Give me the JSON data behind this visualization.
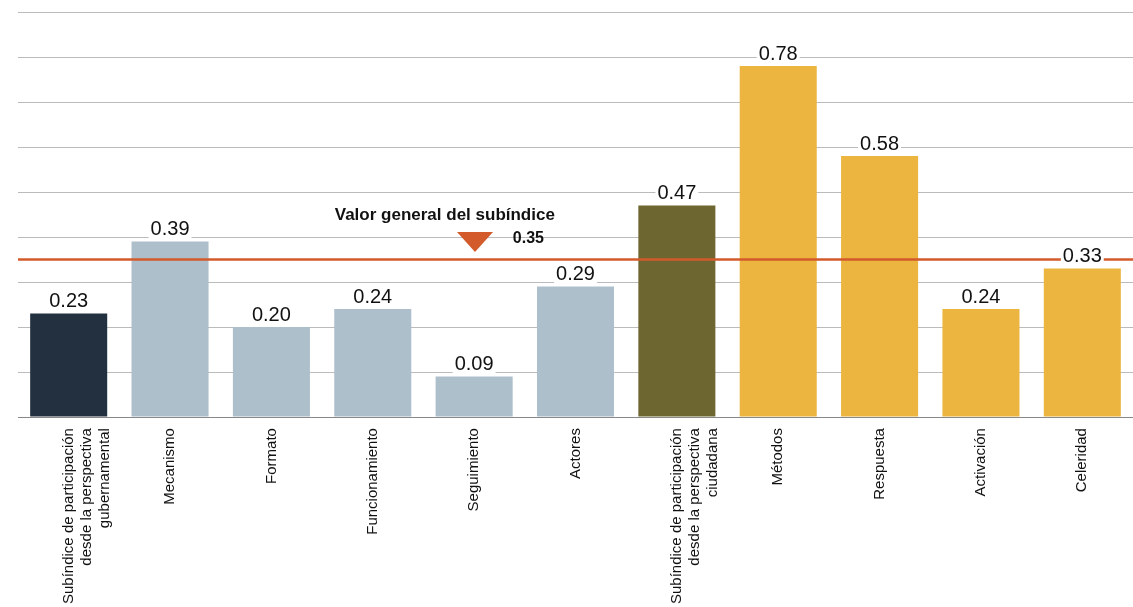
{
  "chart_data": {
    "type": "bar",
    "categories": [
      "Subíndice de participación desde la perspectiva gubernamental",
      "Mecanismo",
      "Formato",
      "Funcionamiento",
      "Seguimiento",
      "Actores",
      "Subíndice de participación desde la perspectiva ciudadana",
      "Métodos",
      "Respuesta",
      "Activación",
      "Celeridad"
    ],
    "values": [
      0.23,
      0.39,
      0.2,
      0.24,
      0.09,
      0.29,
      0.47,
      0.78,
      0.58,
      0.24,
      0.33
    ],
    "colors": [
      "#22303f",
      "#adbfcb",
      "#adbfcb",
      "#adbfcb",
      "#adbfcb",
      "#adbfcb",
      "#6e6630",
      "#ebb540",
      "#ebb540",
      "#ebb540",
      "#ebb540"
    ],
    "value_labels": [
      "0.23",
      "0.39",
      "0.20",
      "0.24",
      "0.09",
      "0.29",
      "0.47",
      "0.78",
      "0.58",
      "0.24",
      "0.33"
    ],
    "ylim": [
      0,
      0.9
    ],
    "yticks": [
      {
        "value": 0,
        "label": null
      },
      {
        "value": 0.1,
        "label": null
      },
      {
        "value": 0.2,
        "label": null
      },
      {
        "value": 0.3,
        "label": null
      },
      {
        "value": 0.4,
        "label": null
      },
      {
        "value": 0.5,
        "label": null
      },
      {
        "value": 0.6,
        "label": null
      },
      {
        "value": 0.7,
        "label": null
      },
      {
        "value": 0.8,
        "label": null
      },
      {
        "value": 0.9,
        "label": null
      }
    ],
    "tick_labels": "x",
    "grid": "y",
    "annotations": [
      {
        "text": "0.35",
        "y": 0.35
      }
    ],
    "ref_lines": [
      {
        "axis": "y",
        "value": 0.35,
        "label": "Valor general del subíndice",
        "color": "#d35a2b"
      }
    ]
  }
}
